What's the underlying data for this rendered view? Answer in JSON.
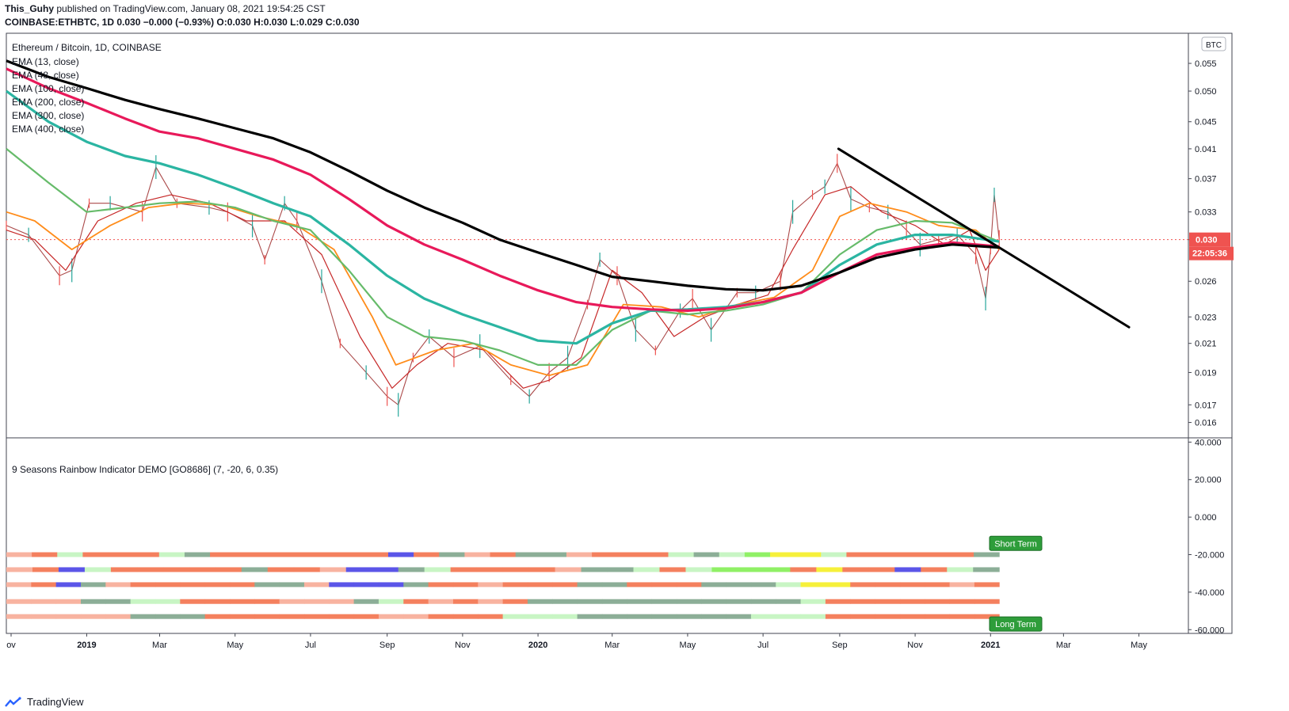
{
  "header": {
    "author": "This_Guhy",
    "published_text": "published on TradingView.com, January 08, 2021 19:54:25 CST",
    "symbol_line": "COINBASE:ETHBTC, 1D 0.030 −0.000 (−0.93%) O:0.030 H:0.030 L:0.029 C:0.030"
  },
  "legend": {
    "title": "Ethereum / Bitcoin, 1D, COINBASE",
    "items": [
      "EMA (13, close)",
      "EMA (48, close)",
      "EMA (100, close)",
      "EMA (200, close)",
      "EMA (300, close)",
      "EMA (400, close)"
    ]
  },
  "indicator_label": "9 Seasons Rainbow Indicator DEMO [GO8686] (7, -20, 6, 0.35)",
  "price_badge": {
    "price": "0.030",
    "countdown": "22:05:36",
    "color": "#ef5350"
  },
  "currency_badge": "BTC",
  "footer_brand": "TradingView",
  "chart_data": [
    {
      "type": "line",
      "title": "Ethereum / Bitcoin, 1D, COINBASE",
      "scale": "log",
      "x_ticks": [
        "ov",
        "2019",
        "Mar",
        "May",
        "Jul",
        "Sep",
        "Nov",
        "2020",
        "Mar",
        "May",
        "Jul",
        "Sep",
        "Nov",
        "2021",
        "Mar",
        "May"
      ],
      "y_ticks": [
        "0.055",
        "0.050",
        "0.045",
        "0.041",
        "0.037",
        "0.033",
        "0.030",
        "0.026",
        "0.023",
        "0.021",
        "0.019",
        "0.017",
        "0.016"
      ],
      "ylim": [
        0.0153,
        0.061
      ],
      "x_range": [
        "2018-10-28",
        "2021-06-10"
      ],
      "price": {
        "name": "ETHBTC",
        "color": "#8b1a1a",
        "x": [
          "2018-10-28",
          "2018-11-15",
          "2018-12-10",
          "2018-12-20",
          "2019-01-03",
          "2019-01-20",
          "2019-02-15",
          "2019-02-26",
          "2019-03-15",
          "2019-04-10",
          "2019-04-25",
          "2019-05-15",
          "2019-05-25",
          "2019-06-10",
          "2019-06-20",
          "2019-07-10",
          "2019-07-25",
          "2019-08-15",
          "2019-09-01",
          "2019-09-10",
          "2019-09-22",
          "2019-10-05",
          "2019-10-25",
          "2019-11-15",
          "2019-12-10",
          "2019-12-25",
          "2020-01-10",
          "2020-01-25",
          "2020-02-10",
          "2020-02-20",
          "2020-03-05",
          "2020-03-20",
          "2020-04-05",
          "2020-04-25",
          "2020-05-05",
          "2020-05-20",
          "2020-06-10",
          "2020-06-25",
          "2020-07-15",
          "2020-07-25",
          "2020-08-10",
          "2020-08-20",
          "2020-08-30",
          "2020-09-10",
          "2020-09-25",
          "2020-10-10",
          "2020-10-25",
          "2020-11-05",
          "2020-11-20",
          "2020-12-05",
          "2020-12-20",
          "2020-12-28",
          "2021-01-01",
          "2021-01-04",
          "2021-01-08"
        ],
        "values": [
          0.0315,
          0.0305,
          0.0265,
          0.027,
          0.034,
          0.034,
          0.033,
          0.0385,
          0.034,
          0.0335,
          0.033,
          0.0315,
          0.028,
          0.034,
          0.032,
          0.026,
          0.021,
          0.019,
          0.0175,
          0.017,
          0.02,
          0.0215,
          0.02,
          0.0208,
          0.0185,
          0.0175,
          0.019,
          0.02,
          0.024,
          0.028,
          0.0265,
          0.022,
          0.0205,
          0.0235,
          0.0245,
          0.022,
          0.025,
          0.025,
          0.026,
          0.033,
          0.035,
          0.036,
          0.039,
          0.0345,
          0.0335,
          0.033,
          0.031,
          0.0295,
          0.03,
          0.0305,
          0.0285,
          0.0245,
          0.029,
          0.035,
          0.03
        ]
      },
      "trendline": {
        "from": {
          "x": "2020-08-31",
          "y": 0.041
        },
        "to": {
          "x": "2021-04-23",
          "y": 0.0222
        },
        "color": "#000000"
      },
      "current_price_line": 0.03,
      "emas": [
        {
          "name": "EMA (13, close)",
          "color": "#c62828",
          "x": [
            "2018-10-28",
            "2018-11-20",
            "2018-12-15",
            "2019-01-10",
            "2019-02-10",
            "2019-03-10",
            "2019-04-10",
            "2019-05-10",
            "2019-06-10",
            "2019-07-10",
            "2019-08-10",
            "2019-09-05",
            "2019-09-25",
            "2019-10-20",
            "2019-11-20",
            "2019-12-20",
            "2020-01-10",
            "2020-02-05",
            "2020-03-01",
            "2020-03-25",
            "2020-04-20",
            "2020-05-15",
            "2020-06-10",
            "2020-07-05",
            "2020-07-25",
            "2020-08-20",
            "2020-09-10",
            "2020-10-05",
            "2020-11-01",
            "2020-11-25",
            "2020-12-15",
            "2020-12-28",
            "2021-01-08"
          ],
          "values": [
            0.031,
            0.03,
            0.027,
            0.032,
            0.034,
            0.035,
            0.034,
            0.032,
            0.032,
            0.0285,
            0.0215,
            0.018,
            0.0195,
            0.021,
            0.0205,
            0.018,
            0.0185,
            0.02,
            0.027,
            0.025,
            0.0215,
            0.023,
            0.024,
            0.0248,
            0.029,
            0.035,
            0.036,
            0.033,
            0.0315,
            0.0295,
            0.031,
            0.027,
            0.029
          ]
        },
        {
          "name": "EMA (48, close)",
          "color": "#ff8c1a",
          "x": [
            "2018-10-28",
            "2018-11-20",
            "2018-12-20",
            "2019-01-20",
            "2019-02-20",
            "2019-03-20",
            "2019-04-20",
            "2019-05-20",
            "2019-06-20",
            "2019-07-20",
            "2019-08-20",
            "2019-09-08",
            "2019-10-10",
            "2019-11-10",
            "2019-12-10",
            "2020-01-10",
            "2020-02-10",
            "2020-03-10",
            "2020-04-10",
            "2020-05-10",
            "2020-06-10",
            "2020-07-10",
            "2020-08-10",
            "2020-09-01",
            "2020-09-25",
            "2020-10-25",
            "2020-11-20",
            "2020-12-20",
            "2021-01-08"
          ],
          "values": [
            0.033,
            0.032,
            0.029,
            0.0315,
            0.0335,
            0.034,
            0.0338,
            0.0325,
            0.0315,
            0.029,
            0.023,
            0.0195,
            0.0205,
            0.021,
            0.0195,
            0.0188,
            0.0195,
            0.024,
            0.0238,
            0.023,
            0.024,
            0.0246,
            0.027,
            0.0325,
            0.034,
            0.033,
            0.0315,
            0.031,
            0.029
          ]
        },
        {
          "name": "EMA (100, close)",
          "color": "#66bb6a",
          "x": [
            "2018-10-28",
            "2018-12-01",
            "2019-01-01",
            "2019-02-01",
            "2019-03-01",
            "2019-04-01",
            "2019-05-01",
            "2019-06-01",
            "2019-07-01",
            "2019-08-01",
            "2019-09-01",
            "2019-10-01",
            "2019-11-01",
            "2019-12-01",
            "2020-01-01",
            "2020-02-01",
            "2020-03-01",
            "2020-04-01",
            "2020-05-01",
            "2020-06-01",
            "2020-07-01",
            "2020-08-01",
            "2020-09-01",
            "2020-10-01",
            "2020-11-01",
            "2020-12-01",
            "2021-01-08"
          ],
          "values": [
            0.041,
            0.0365,
            0.033,
            0.0335,
            0.034,
            0.0342,
            0.0335,
            0.032,
            0.031,
            0.027,
            0.023,
            0.0215,
            0.0212,
            0.0205,
            0.0195,
            0.0195,
            0.022,
            0.0235,
            0.0232,
            0.0235,
            0.024,
            0.025,
            0.0285,
            0.031,
            0.032,
            0.0318,
            0.0298
          ]
        },
        {
          "name": "EMA (200, close)",
          "color": "#2bb5a2",
          "x": [
            "2018-10-28",
            "2018-12-01",
            "2019-01-01",
            "2019-02-01",
            "2019-03-01",
            "2019-04-01",
            "2019-05-01",
            "2019-06-01",
            "2019-07-01",
            "2019-08-01",
            "2019-09-01",
            "2019-10-01",
            "2019-11-01",
            "2019-12-01",
            "2020-01-01",
            "2020-02-01",
            "2020-03-01",
            "2020-04-01",
            "2020-05-01",
            "2020-06-01",
            "2020-07-01",
            "2020-08-01",
            "2020-09-01",
            "2020-10-01",
            "2020-11-01",
            "2020-12-01",
            "2021-01-08"
          ],
          "values": [
            0.05,
            0.045,
            0.042,
            0.04,
            0.039,
            0.0375,
            0.0358,
            0.034,
            0.0325,
            0.0295,
            0.0265,
            0.0245,
            0.0232,
            0.0222,
            0.0212,
            0.021,
            0.0225,
            0.0235,
            0.0236,
            0.0238,
            0.0242,
            0.025,
            0.0275,
            0.0295,
            0.0305,
            0.0305,
            0.0298
          ]
        },
        {
          "name": "EMA (300, close)",
          "color": "#e8195a",
          "x": [
            "2018-10-28",
            "2018-12-01",
            "2019-01-01",
            "2019-02-01",
            "2019-03-01",
            "2019-04-01",
            "2019-05-01",
            "2019-06-01",
            "2019-07-01",
            "2019-08-01",
            "2019-09-01",
            "2019-10-01",
            "2019-11-01",
            "2019-12-01",
            "2020-01-01",
            "2020-02-01",
            "2020-03-01",
            "2020-04-01",
            "2020-05-01",
            "2020-06-01",
            "2020-07-01",
            "2020-08-01",
            "2020-09-01",
            "2020-10-01",
            "2020-11-01",
            "2020-12-01",
            "2021-01-08"
          ],
          "values": [
            0.054,
            0.0505,
            0.048,
            0.0455,
            0.0435,
            0.0425,
            0.041,
            0.0395,
            0.0375,
            0.0345,
            0.0315,
            0.0295,
            0.028,
            0.0265,
            0.0252,
            0.0242,
            0.0238,
            0.0236,
            0.0235,
            0.0237,
            0.0242,
            0.025,
            0.0268,
            0.0285,
            0.0292,
            0.0297,
            0.0293
          ]
        },
        {
          "name": "EMA (400, close)",
          "color": "#000000",
          "x": [
            "2018-10-28",
            "2018-12-01",
            "2019-01-01",
            "2019-02-01",
            "2019-03-01",
            "2019-04-01",
            "2019-05-01",
            "2019-06-01",
            "2019-07-01",
            "2019-08-01",
            "2019-09-01",
            "2019-10-01",
            "2019-11-01",
            "2019-12-01",
            "2020-01-01",
            "2020-02-01",
            "2020-03-01",
            "2020-04-01",
            "2020-05-01",
            "2020-06-01",
            "2020-07-01",
            "2020-08-01",
            "2020-09-01",
            "2020-10-01",
            "2020-11-01",
            "2020-12-01",
            "2021-01-08"
          ],
          "values": [
            0.0555,
            0.0525,
            0.0505,
            0.0485,
            0.047,
            0.0455,
            0.044,
            0.0425,
            0.0405,
            0.038,
            0.0355,
            0.0335,
            0.0318,
            0.03,
            0.0287,
            0.0275,
            0.0264,
            0.026,
            0.0256,
            0.0253,
            0.0252,
            0.0256,
            0.0268,
            0.0282,
            0.029,
            0.0295,
            0.0292
          ]
        }
      ]
    },
    {
      "type": "heatmap",
      "title": "9 Seasons Rainbow Indicator DEMO [GO8686] (7, -20, 6, 0.35)",
      "y_ticks": [
        "40.000",
        "20.000",
        "0.000",
        "-20.000",
        "-40.000",
        "-60.000"
      ],
      "ylim": [
        -62,
        41
      ],
      "x_range": [
        "2018-10-28",
        "2021-01-08"
      ],
      "palette": {
        "R": "#f4805e",
        "P": "#f8b3a0",
        "G": "#8cae97",
        "L": "#c8f5c4",
        "B": "#5b55e8",
        "Y": "#f6f03a",
        "N": "#90f066"
      },
      "rows": [
        {
          "y": -20,
          "bands": "PRLRRRLGRRRRRRRBRGPRGGPRRRLGLNYYLRRRRRG"
        },
        {
          "y": -28,
          "bands": "PRBLRRRRRGRRPBBGLRRRRPGGLRLNNNRYRRBRLG"
        },
        {
          "y": -36,
          "bands": "PRBGPRRRRRGGPBBBGRRPRRRGGRRRGGGLYYRRRRPR"
        },
        {
          "y": -45,
          "bands": "PPPGGLLRRRRPPPGLRPRPRGGGGGGGGGGGLRRRRRRR"
        },
        {
          "y": -53,
          "bands": "PPPPPGGGRRRRRRRPPRRRLLLGGGGGGGLLLRRRRRRR"
        }
      ],
      "labels": [
        {
          "text": "Short Term",
          "y": -14
        },
        {
          "text": "Long Term",
          "y": -57
        }
      ]
    }
  ]
}
